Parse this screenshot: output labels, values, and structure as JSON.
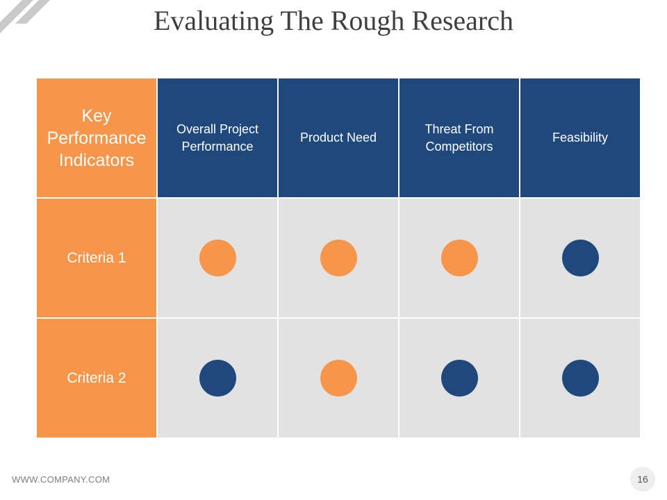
{
  "slide": {
    "title": "Evaluating The Rough Research",
    "footer_url": "WWW.COMPANY.COM",
    "page_number": "16"
  },
  "colors": {
    "orange": "#f7954a",
    "navy": "#1f497d",
    "cell_bg": "#e2e2e2"
  },
  "table": {
    "header_label": "Key Performance Indicators",
    "columns": [
      "Overall Project Performance",
      "Product Need",
      "Threat From Competitors",
      "Feasibility"
    ],
    "rows": [
      {
        "label": "Criteria 1",
        "ratings": [
          "orange",
          "orange",
          "orange",
          "navy"
        ]
      },
      {
        "label": "Criteria 2",
        "ratings": [
          "navy",
          "orange",
          "navy",
          "navy"
        ]
      }
    ]
  }
}
